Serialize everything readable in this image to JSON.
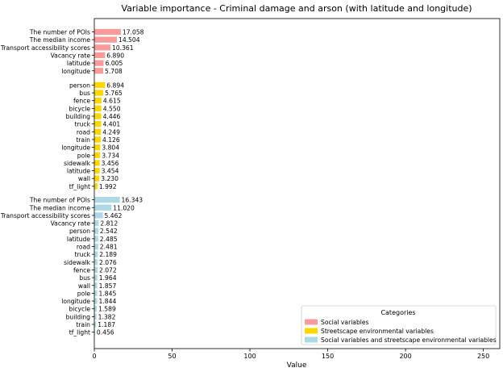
{
  "chart_data": {
    "type": "bar",
    "orientation": "horizontal",
    "title": "Variable importance - Criminal damage and arson (with latitude and longitude)",
    "xlabel": "Value",
    "ylabel": "",
    "xlim": [
      0,
      260
    ],
    "xticks": [
      0,
      50,
      100,
      150,
      200,
      250
    ],
    "grid": false,
    "legend": {
      "title": "Categories",
      "placement": "bottom-right",
      "entries": [
        {
          "label": "Social variables",
          "color": "#f99b9b"
        },
        {
          "label": "Streetscape environmental variables",
          "color": "#ffd700"
        },
        {
          "label": "Social variables and streetscape environmental variables",
          "color": "#add8e6"
        }
      ]
    },
    "groups": [
      {
        "category": "Social variables",
        "color": "#f99b9b",
        "labels": [
          "The number of POIs",
          "The median income",
          "Transport accessibility scores",
          "Vacancy rate",
          "latitude",
          "longitude"
        ],
        "values": [
          17.058,
          14.504,
          10.361,
          6.89,
          6.005,
          5.708
        ],
        "value_labels": [
          "17.058",
          "14.504",
          "10.361",
          "6.890",
          "6.005",
          "5.708"
        ]
      },
      {
        "category": "Streetscape environmental variables",
        "color": "#ffd700",
        "labels": [
          "person",
          "bus",
          "fence",
          "bicycle",
          "building",
          "truck",
          "road",
          "train",
          "longitude",
          "pole",
          "sidewalk",
          "latitude",
          "wall",
          "tf_light"
        ],
        "values": [
          6.894,
          5.765,
          4.615,
          4.55,
          4.446,
          4.401,
          4.249,
          4.126,
          3.804,
          3.734,
          3.456,
          3.454,
          3.23,
          1.992
        ],
        "value_labels": [
          "6.894",
          "5.765",
          "4.615",
          "4.550",
          "4.446",
          "4.401",
          "4.249",
          "4.126",
          "3.804",
          "3.734",
          "3.456",
          "3.454",
          "3.230",
          "1.992"
        ]
      },
      {
        "category": "Social variables and streetscape environmental variables",
        "color": "#add8e6",
        "labels": [
          "The number of POIs",
          "The median income",
          "Transport accessibility scores",
          "Vacancy rate",
          "person",
          "latitude",
          "road",
          "truck",
          "sidewalk",
          "fence",
          "bus",
          "wall",
          "pole",
          "longitude",
          "bicycle",
          "building",
          "train",
          "tf_light"
        ],
        "values": [
          16.343,
          11.02,
          5.462,
          2.812,
          2.542,
          2.485,
          2.481,
          2.189,
          2.076,
          2.072,
          1.964,
          1.857,
          1.845,
          1.844,
          1.589,
          1.382,
          1.187,
          0.456
        ],
        "value_labels": [
          "16.343",
          "11.020",
          "5.462",
          "2.812",
          "2.542",
          "2.485",
          "2.481",
          "2.189",
          "2.076",
          "2.072",
          "1.964",
          "1.857",
          "1.845",
          "1.844",
          "1.589",
          "1.382",
          "1.187",
          "0.456"
        ]
      }
    ]
  }
}
